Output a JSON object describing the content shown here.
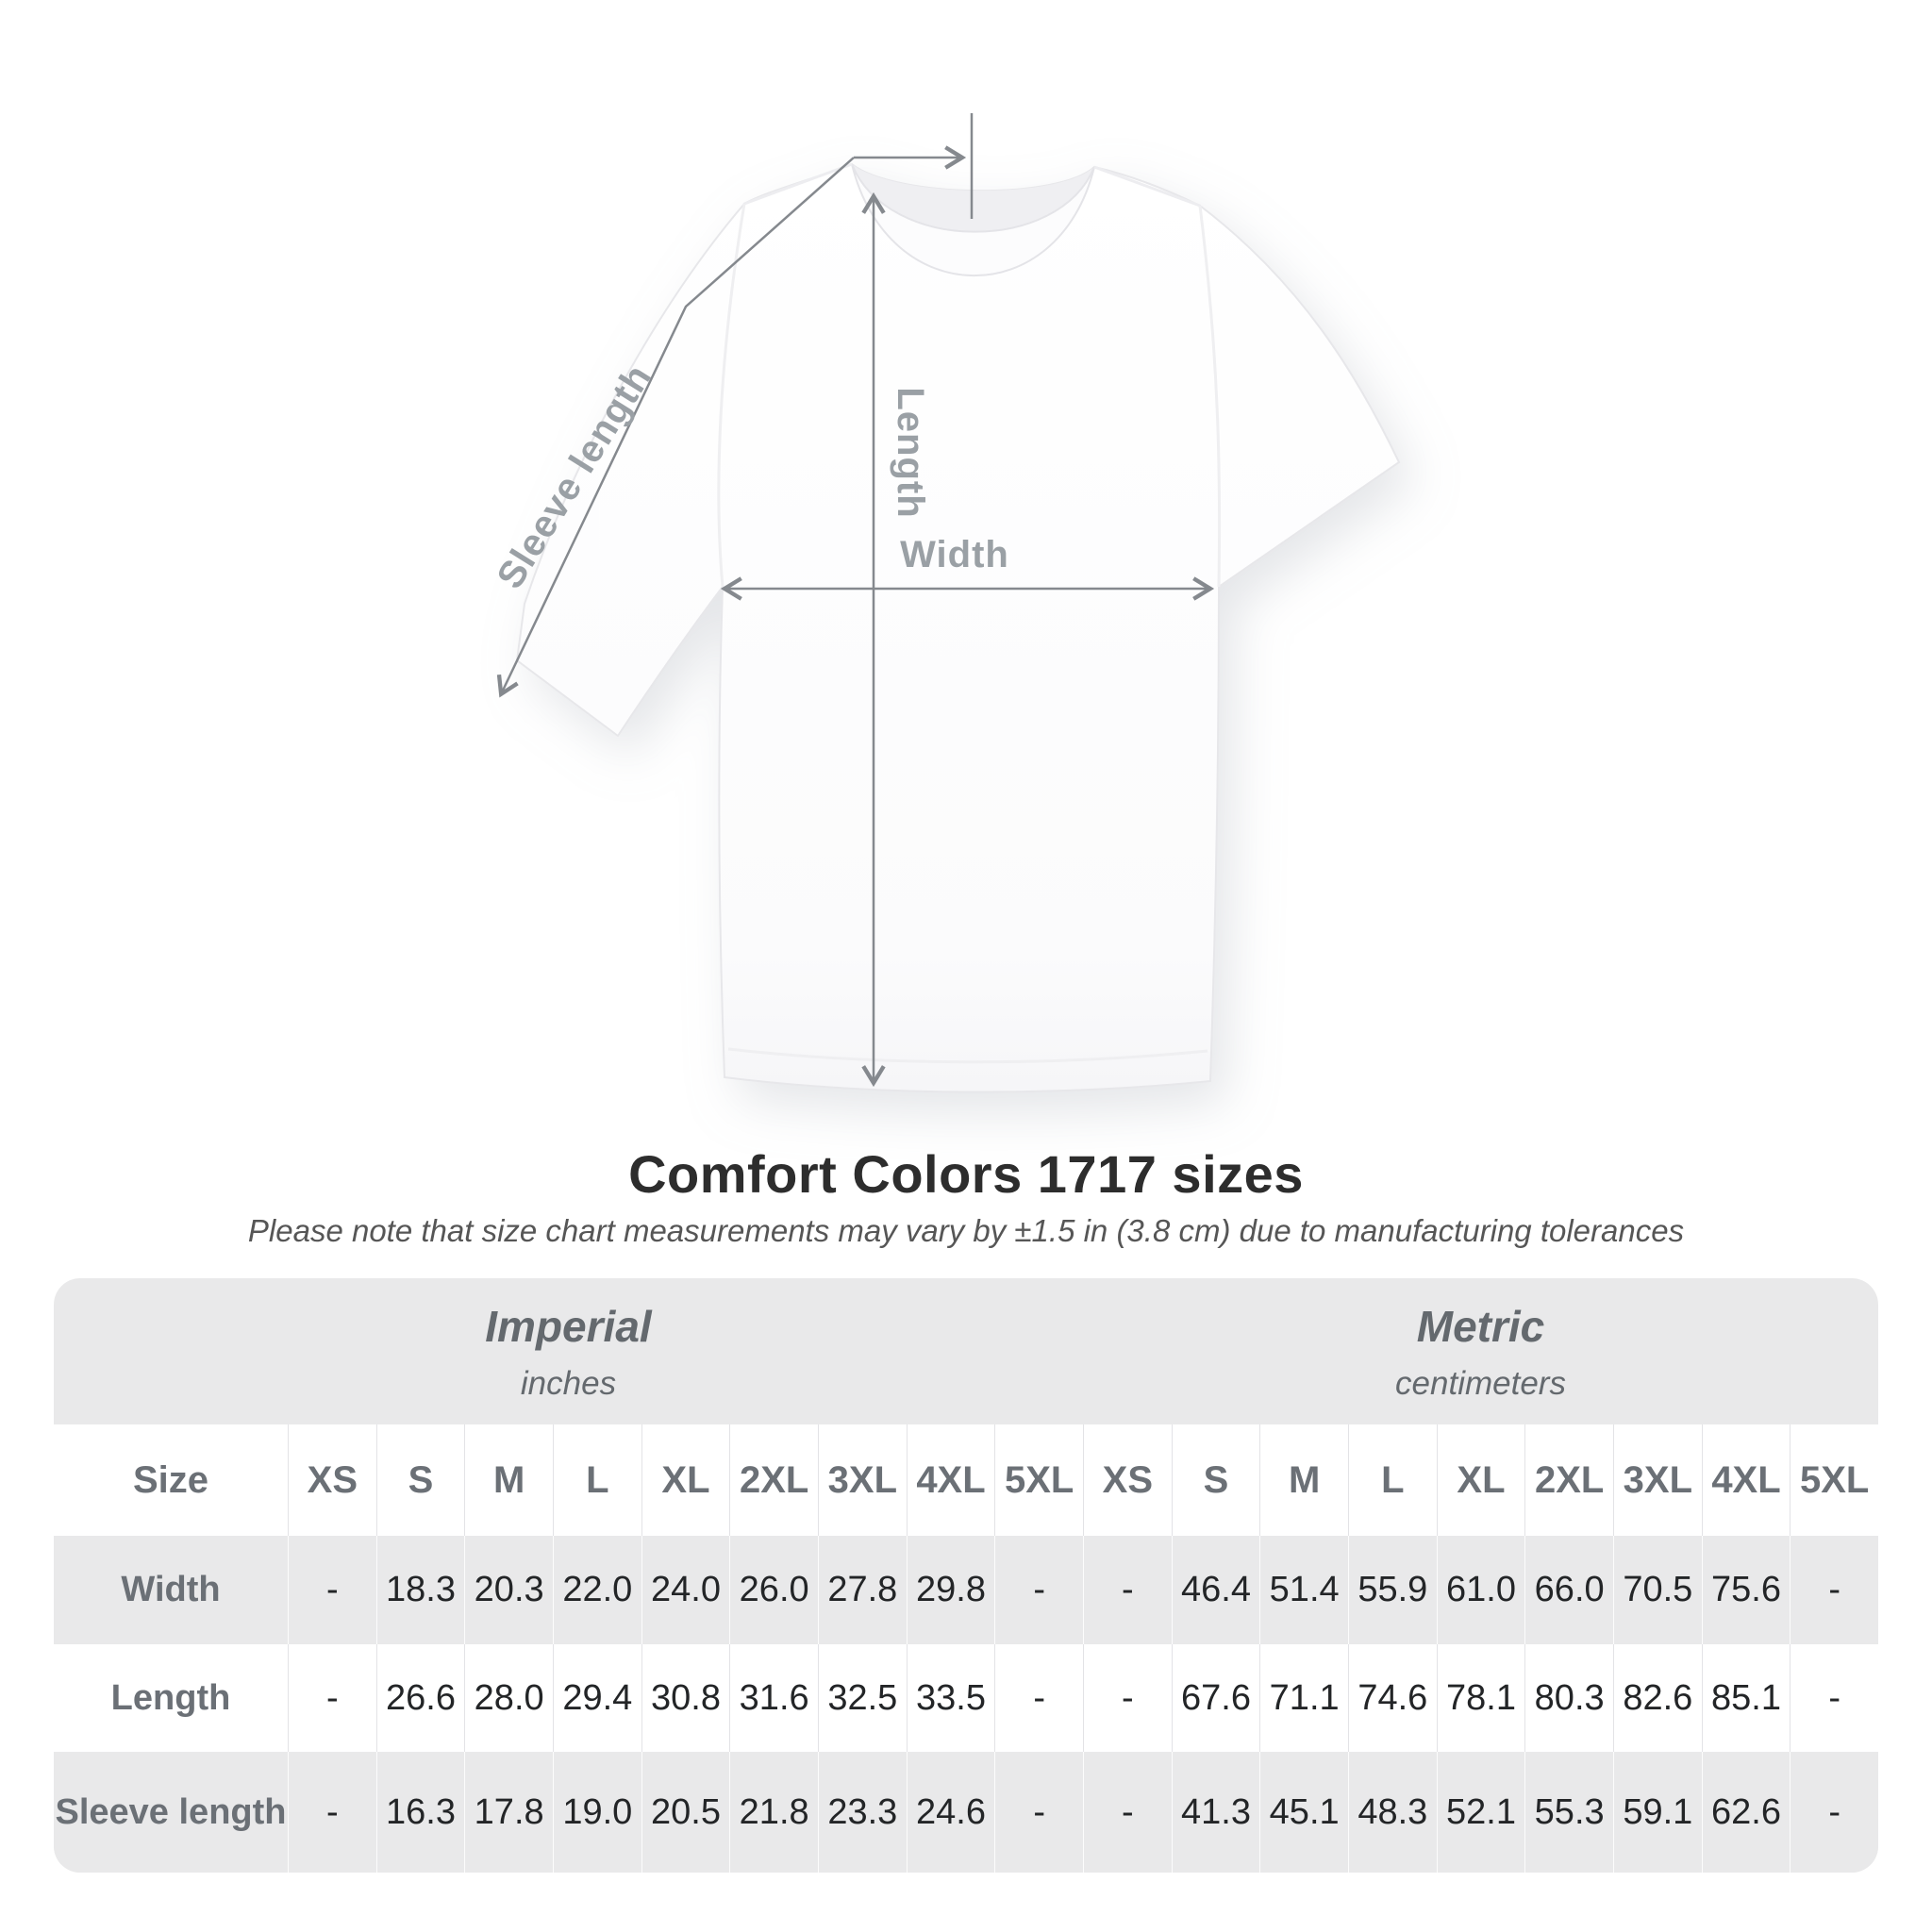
{
  "diagram": {
    "labels": {
      "sleeve_length": "Sleeve length",
      "length": "Length",
      "width": "Width"
    },
    "annotation_color": "#85898e",
    "label_color": "#9aa0a5",
    "garment": "white crew-neck t-shirt"
  },
  "heading": {
    "title": "Comfort Colors 1717 sizes",
    "subtitle": "Please note that size chart measurements may vary by ±1.5 in (3.8 cm) due to manufacturing tolerances"
  },
  "size_table": {
    "background_color": "#e9e9ea",
    "group_headers": [
      {
        "label": "Imperial",
        "sublabel": "inches"
      },
      {
        "label": "Metric",
        "sublabel": "centimeters"
      }
    ],
    "size_column_header": "Size",
    "sizes": [
      "XS",
      "S",
      "M",
      "L",
      "XL",
      "2XL",
      "3XL",
      "4XL",
      "5XL"
    ],
    "rows": [
      {
        "label": "Width",
        "imperial": [
          "-",
          "18.3",
          "20.3",
          "22.0",
          "24.0",
          "26.0",
          "27.8",
          "29.8",
          "-"
        ],
        "metric": [
          "-",
          "46.4",
          "51.4",
          "55.9",
          "61.0",
          "66.0",
          "70.5",
          "75.6",
          "-"
        ]
      },
      {
        "label": "Length",
        "imperial": [
          "-",
          "26.6",
          "28.0",
          "29.4",
          "30.8",
          "31.6",
          "32.5",
          "33.5",
          "-"
        ],
        "metric": [
          "-",
          "67.6",
          "71.1",
          "74.6",
          "78.1",
          "80.3",
          "82.6",
          "85.1",
          "-"
        ]
      },
      {
        "label": "Sleeve length",
        "imperial": [
          "-",
          "16.3",
          "17.8",
          "19.0",
          "20.5",
          "21.8",
          "23.3",
          "24.6",
          "-"
        ],
        "metric": [
          "-",
          "41.3",
          "45.1",
          "48.3",
          "52.1",
          "55.3",
          "59.1",
          "62.6",
          "-"
        ]
      }
    ]
  }
}
